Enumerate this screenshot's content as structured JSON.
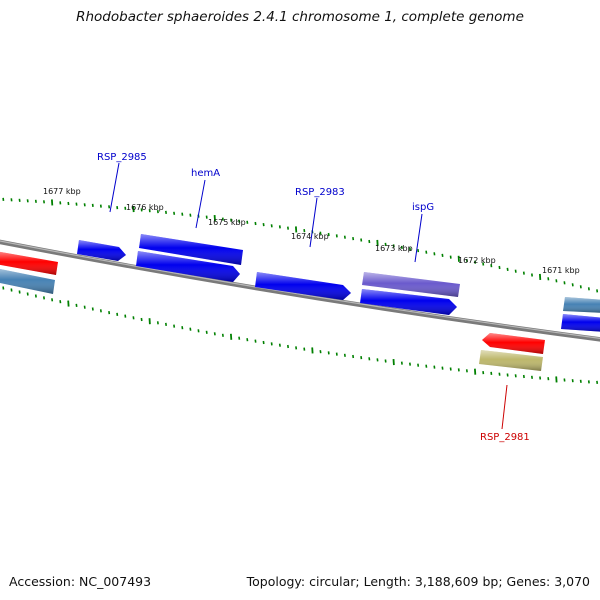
{
  "title": "Rhodobacter sphaeroides 2.4.1 chromosome 1, complete genome",
  "footer": {
    "accession": "Accession: NC_007493",
    "summary": "Topology: circular; Length: 3,188,609 bp; Genes: 3,070"
  },
  "colors": {
    "backbone": "#808080",
    "tick": "#008000",
    "gene_blue": "#0000ee",
    "gene_red": "#ff0000",
    "gene_purple": "#6a5acd",
    "gene_steelblue": "#4682b4",
    "gene_khaki": "#bdb76b",
    "label_blue": "#0000cc",
    "label_red": "#cc0000"
  },
  "kbp_ticks": [
    {
      "label": "1677 kbp"
    },
    {
      "label": "1676 kbp"
    },
    {
      "label": "1675 kbp"
    },
    {
      "label": "1674 kbp"
    },
    {
      "label": "1673 kbp"
    },
    {
      "label": "1672 kbp"
    },
    {
      "label": "1671 kbp"
    }
  ],
  "gene_labels": [
    {
      "name": "RSP_2985",
      "color": "blue"
    },
    {
      "name": "hemA",
      "color": "blue"
    },
    {
      "name": "RSP_2983",
      "color": "blue"
    },
    {
      "name": "ispG",
      "color": "blue"
    },
    {
      "name": "RSP_2981",
      "color": "red"
    }
  ]
}
